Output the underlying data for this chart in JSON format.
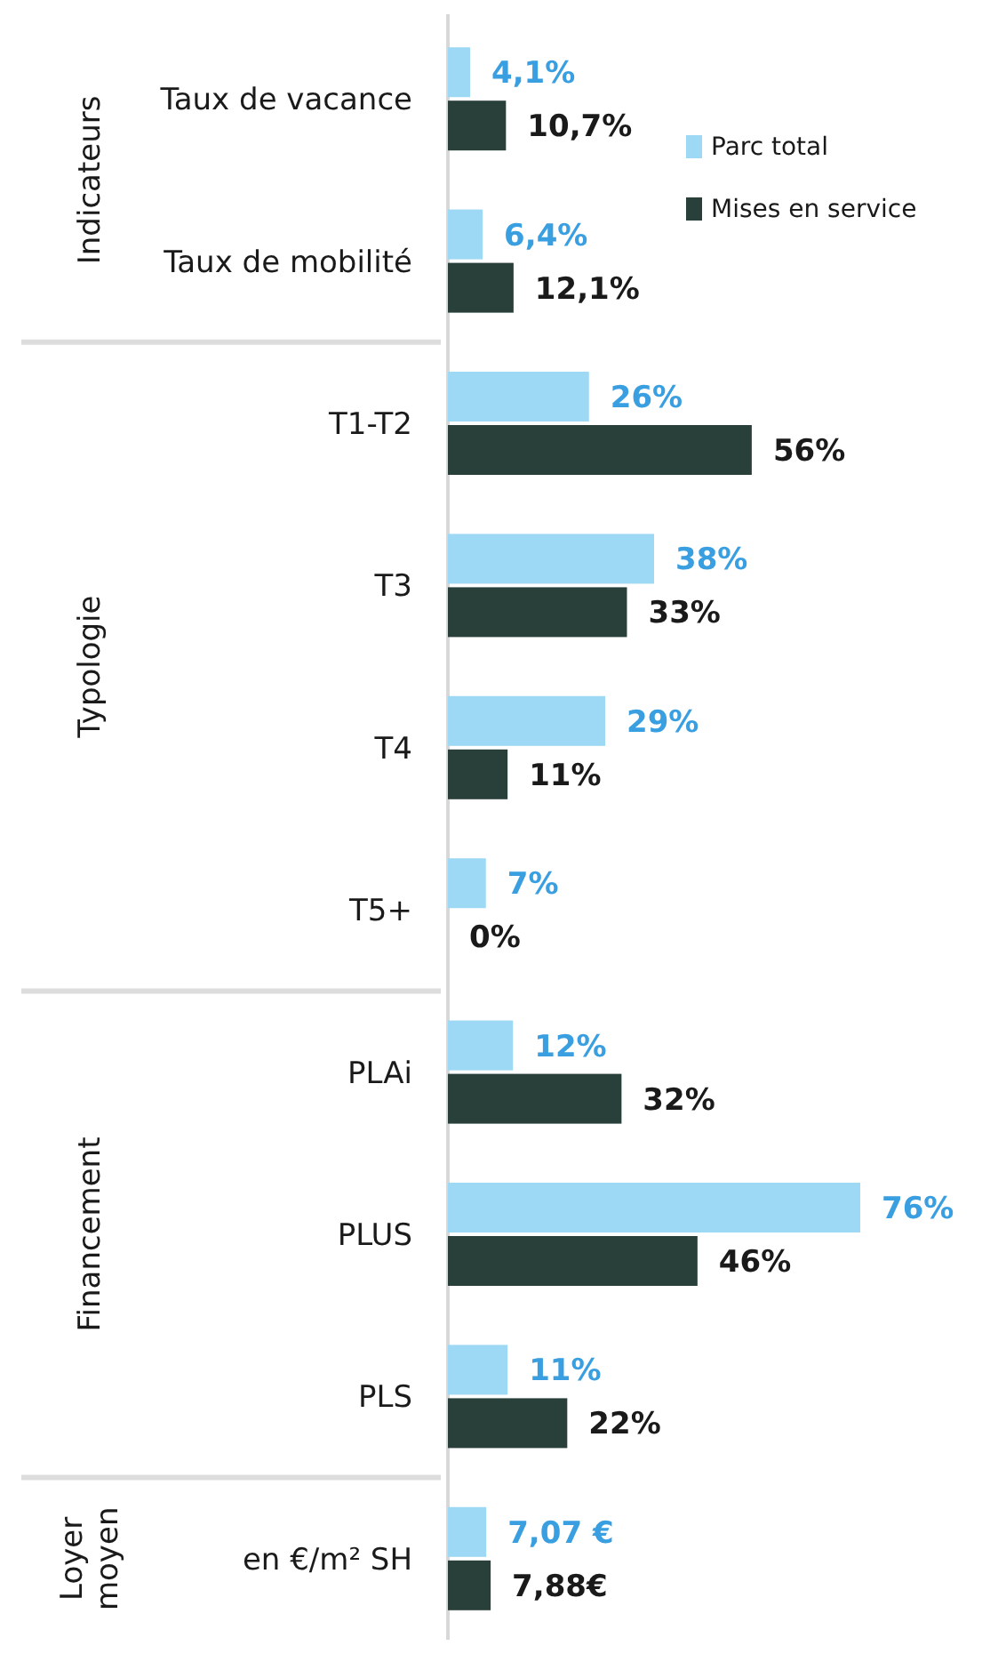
{
  "chart_data": {
    "type": "bar",
    "orientation": "horizontal",
    "categories": [
      "Taux de vacance",
      "Taux de mobilité",
      "T1-T2",
      "T3",
      "T4",
      "T5+",
      "PLAi",
      "PLUS",
      "PLS",
      "en €/m² SH"
    ],
    "series": [
      {
        "name": "Parc total",
        "color": "#9dd8f4",
        "values": [
          4.1,
          6.4,
          26,
          38,
          29,
          7,
          12,
          76,
          11,
          7.07
        ],
        "value_labels": [
          "4,1%",
          "6,4%",
          "26%",
          "38%",
          "29%",
          "7%",
          "12%",
          "76%",
          "11%",
          "7,07 €"
        ]
      },
      {
        "name": "Mises en service",
        "color": "#29403a",
        "values": [
          10.7,
          12.1,
          56,
          33,
          11,
          0,
          32,
          46,
          22,
          7.88
        ],
        "value_labels": [
          "10,7%",
          "12,1%",
          "56%",
          "33%",
          "11%",
          "0%",
          "32%",
          "46%",
          "22%",
          "7,88€"
        ]
      }
    ],
    "annotations": [
      "Indicateurs",
      "Typologie",
      "Financement",
      "Loyer moyen"
    ],
    "legend": "top right"
  }
}
